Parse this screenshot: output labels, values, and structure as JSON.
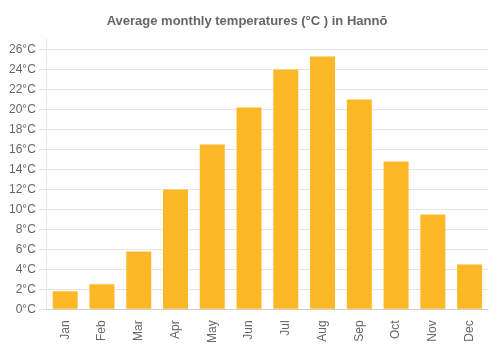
{
  "chart_data": {
    "type": "bar",
    "title": "Average monthly temperatures (°C ) in Hannō",
    "categories": [
      "Jan",
      "Feb",
      "Mar",
      "Apr",
      "May",
      "Jun",
      "Jul",
      "Aug",
      "Sep",
      "Oct",
      "Nov",
      "Dec"
    ],
    "values": [
      1.8,
      2.5,
      5.8,
      12.0,
      16.5,
      20.2,
      24.0,
      25.3,
      21.0,
      14.8,
      9.5,
      4.5
    ],
    "color": "#FDB827",
    "ylim": [
      0,
      27
    ],
    "yticks": [
      {
        "value": 0,
        "label": "0°C"
      },
      {
        "value": 2,
        "label": "2°C"
      },
      {
        "value": 4,
        "label": "4°C"
      },
      {
        "value": 6,
        "label": "6°C"
      },
      {
        "value": 8,
        "label": "8°C"
      },
      {
        "value": 10,
        "label": "10°C"
      },
      {
        "value": 12,
        "label": "12°C"
      },
      {
        "value": 14,
        "label": "14°C"
      },
      {
        "value": 16,
        "label": "16°C"
      },
      {
        "value": 18,
        "label": "18°C"
      },
      {
        "value": 20,
        "label": "20°C"
      },
      {
        "value": 22,
        "label": "22°C"
      },
      {
        "value": 24,
        "label": "24°C"
      },
      {
        "value": 26,
        "label": "26°C"
      }
    ],
    "grid": true
  }
}
